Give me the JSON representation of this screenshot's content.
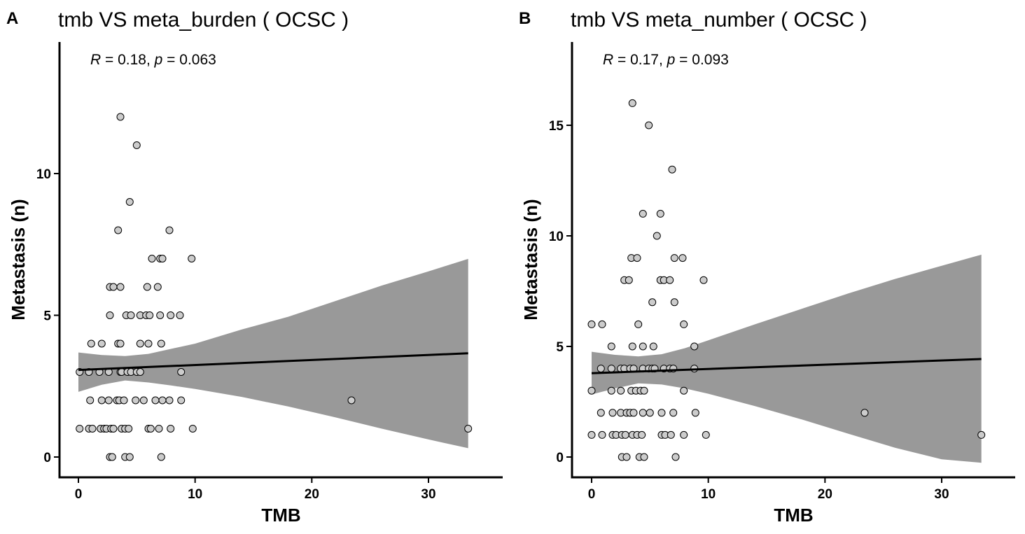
{
  "chart_data": [
    {
      "panel_label": "A",
      "type": "scatter",
      "title": "tmb  VS  meta_burden ( OCSC )",
      "xlabel": "TMB",
      "ylabel": "Metastasis (n)",
      "xlim": [
        -1.7,
        36.4
      ],
      "ylim": [
        -0.65,
        14.8
      ],
      "xticks": [
        0,
        10,
        20,
        30
      ],
      "yticks": [
        0,
        5,
        10
      ],
      "grid": false,
      "annotation": {
        "r_symbol": "R",
        "r_text": " = 0.18, ",
        "p_symbol": "p",
        "p_text": " = 0.063"
      },
      "points": [
        [
          0.1,
          3
        ],
        [
          0.1,
          1
        ],
        [
          0.9,
          3
        ],
        [
          0.9,
          1
        ],
        [
          1.0,
          2
        ],
        [
          1.1,
          4
        ],
        [
          1.2,
          1
        ],
        [
          1.8,
          3
        ],
        [
          1.9,
          1
        ],
        [
          2.0,
          4
        ],
        [
          2.0,
          2
        ],
        [
          2.2,
          1
        ],
        [
          2.4,
          1
        ],
        [
          2.6,
          3
        ],
        [
          2.6,
          2
        ],
        [
          2.7,
          5
        ],
        [
          2.7,
          6
        ],
        [
          2.7,
          0
        ],
        [
          2.8,
          1
        ],
        [
          2.9,
          0
        ],
        [
          3.0,
          6
        ],
        [
          3.0,
          1
        ],
        [
          3.3,
          2
        ],
        [
          3.4,
          8
        ],
        [
          3.4,
          4
        ],
        [
          3.5,
          2
        ],
        [
          3.6,
          6
        ],
        [
          3.6,
          4
        ],
        [
          3.6,
          3
        ],
        [
          3.6,
          12
        ],
        [
          3.7,
          1
        ],
        [
          3.7,
          3
        ],
        [
          3.9,
          2
        ],
        [
          4.0,
          1
        ],
        [
          4.0,
          0
        ],
        [
          4.1,
          5
        ],
        [
          4.2,
          3
        ],
        [
          4.3,
          1
        ],
        [
          4.4,
          0
        ],
        [
          4.4,
          9
        ],
        [
          4.5,
          5
        ],
        [
          4.5,
          3
        ],
        [
          4.9,
          2
        ],
        [
          5.0,
          11
        ],
        [
          5.0,
          3
        ],
        [
          5.3,
          4
        ],
        [
          5.3,
          5
        ],
        [
          5.3,
          3
        ],
        [
          5.6,
          2
        ],
        [
          5.8,
          5
        ],
        [
          5.9,
          6
        ],
        [
          6.0,
          1
        ],
        [
          6.0,
          4
        ],
        [
          6.1,
          5
        ],
        [
          6.2,
          1
        ],
        [
          6.3,
          7
        ],
        [
          6.6,
          2
        ],
        [
          6.8,
          6
        ],
        [
          6.9,
          1
        ],
        [
          7.0,
          7
        ],
        [
          7.0,
          5
        ],
        [
          7.1,
          4
        ],
        [
          7.1,
          0
        ],
        [
          7.2,
          7
        ],
        [
          7.2,
          2
        ],
        [
          7.8,
          8
        ],
        [
          7.8,
          2
        ],
        [
          7.9,
          5
        ],
        [
          7.9,
          1
        ],
        [
          8.7,
          5
        ],
        [
          8.8,
          3
        ],
        [
          8.8,
          2
        ],
        [
          9.7,
          7
        ],
        [
          9.8,
          1
        ],
        [
          23.4,
          2
        ],
        [
          33.4,
          1
        ]
      ],
      "fit_line": {
        "x": [
          0,
          33.4
        ],
        "y": [
          3.07,
          3.66
        ]
      },
      "confidence_band": {
        "x": [
          0,
          2,
          4,
          6,
          8,
          10,
          14,
          18,
          22,
          26,
          30,
          33.4
        ],
        "upper": [
          3.69,
          3.6,
          3.56,
          3.64,
          3.82,
          4.0,
          4.5,
          4.95,
          5.5,
          6.05,
          6.55,
          6.99
        ],
        "lower": [
          2.3,
          2.55,
          2.7,
          2.63,
          2.52,
          2.4,
          2.12,
          1.78,
          1.4,
          1.0,
          0.62,
          0.31
        ]
      }
    },
    {
      "panel_label": "B",
      "type": "scatter",
      "title": "tmb  VS  meta_number ( OCSC )",
      "xlabel": "TMB",
      "ylabel": "Metastasis (n)",
      "xlim": [
        -1.7,
        36.4
      ],
      "ylim": [
        -0.85,
        19.15
      ],
      "xticks": [
        0,
        10,
        20,
        30
      ],
      "yticks": [
        0,
        5,
        10,
        15
      ],
      "grid": false,
      "annotation": {
        "r_symbol": "R",
        "r_text": " = 0.17, ",
        "p_symbol": "p",
        "p_text": " = 0.093"
      },
      "points": [
        [
          0.0,
          6
        ],
        [
          0.0,
          3
        ],
        [
          0.0,
          1
        ],
        [
          0.8,
          2
        ],
        [
          0.8,
          4
        ],
        [
          0.9,
          1
        ],
        [
          0.9,
          6
        ],
        [
          1.7,
          5
        ],
        [
          1.7,
          4
        ],
        [
          1.7,
          3
        ],
        [
          1.8,
          1
        ],
        [
          1.8,
          2
        ],
        [
          2.1,
          1
        ],
        [
          2.5,
          4
        ],
        [
          2.5,
          3
        ],
        [
          2.5,
          2
        ],
        [
          2.6,
          1
        ],
        [
          2.6,
          0
        ],
        [
          2.8,
          4
        ],
        [
          2.8,
          8
        ],
        [
          2.9,
          1
        ],
        [
          3.0,
          0
        ],
        [
          3.0,
          2
        ],
        [
          3.2,
          8
        ],
        [
          3.3,
          4
        ],
        [
          3.3,
          2
        ],
        [
          3.4,
          3
        ],
        [
          3.4,
          9
        ],
        [
          3.5,
          1
        ],
        [
          3.5,
          16
        ],
        [
          3.5,
          5
        ],
        [
          3.6,
          4
        ],
        [
          3.6,
          2
        ],
        [
          3.8,
          3
        ],
        [
          3.9,
          9
        ],
        [
          3.9,
          1
        ],
        [
          4.0,
          6
        ],
        [
          4.1,
          0
        ],
        [
          4.2,
          3
        ],
        [
          4.3,
          1
        ],
        [
          4.4,
          11
        ],
        [
          4.4,
          5
        ],
        [
          4.4,
          2
        ],
        [
          4.4,
          4
        ],
        [
          4.5,
          0
        ],
        [
          4.5,
          3
        ],
        [
          4.9,
          4
        ],
        [
          4.9,
          15
        ],
        [
          5.0,
          2
        ],
        [
          5.2,
          4
        ],
        [
          5.2,
          7
        ],
        [
          5.3,
          5
        ],
        [
          5.4,
          4
        ],
        [
          5.6,
          10
        ],
        [
          5.9,
          11
        ],
        [
          5.9,
          8
        ],
        [
          6.0,
          1
        ],
        [
          6.0,
          2
        ],
        [
          6.2,
          8
        ],
        [
          6.2,
          4
        ],
        [
          6.3,
          1
        ],
        [
          6.7,
          4
        ],
        [
          6.7,
          8
        ],
        [
          6.8,
          1
        ],
        [
          6.9,
          13
        ],
        [
          7.0,
          2
        ],
        [
          7.0,
          4
        ],
        [
          7.1,
          7
        ],
        [
          7.1,
          9
        ],
        [
          7.2,
          0
        ],
        [
          7.8,
          9
        ],
        [
          7.9,
          1
        ],
        [
          7.9,
          6
        ],
        [
          7.9,
          3
        ],
        [
          8.8,
          5
        ],
        [
          8.8,
          4
        ],
        [
          8.9,
          2
        ],
        [
          9.6,
          8
        ],
        [
          9.8,
          1
        ],
        [
          23.4,
          2
        ],
        [
          33.4,
          1
        ]
      ],
      "fit_line": {
        "x": [
          0,
          33.4
        ],
        "y": [
          3.79,
          4.43
        ]
      },
      "confidence_band": {
        "x": [
          0,
          2,
          4,
          6,
          8,
          10,
          14,
          18,
          22,
          26,
          30,
          33.4
        ],
        "upper": [
          4.76,
          4.62,
          4.55,
          4.65,
          4.92,
          5.28,
          6.0,
          6.7,
          7.4,
          8.05,
          8.65,
          9.15
        ],
        "lower": [
          2.83,
          3.1,
          3.33,
          3.28,
          3.1,
          2.86,
          2.3,
          1.7,
          1.05,
          0.42,
          -0.1,
          -0.26
        ]
      }
    }
  ]
}
